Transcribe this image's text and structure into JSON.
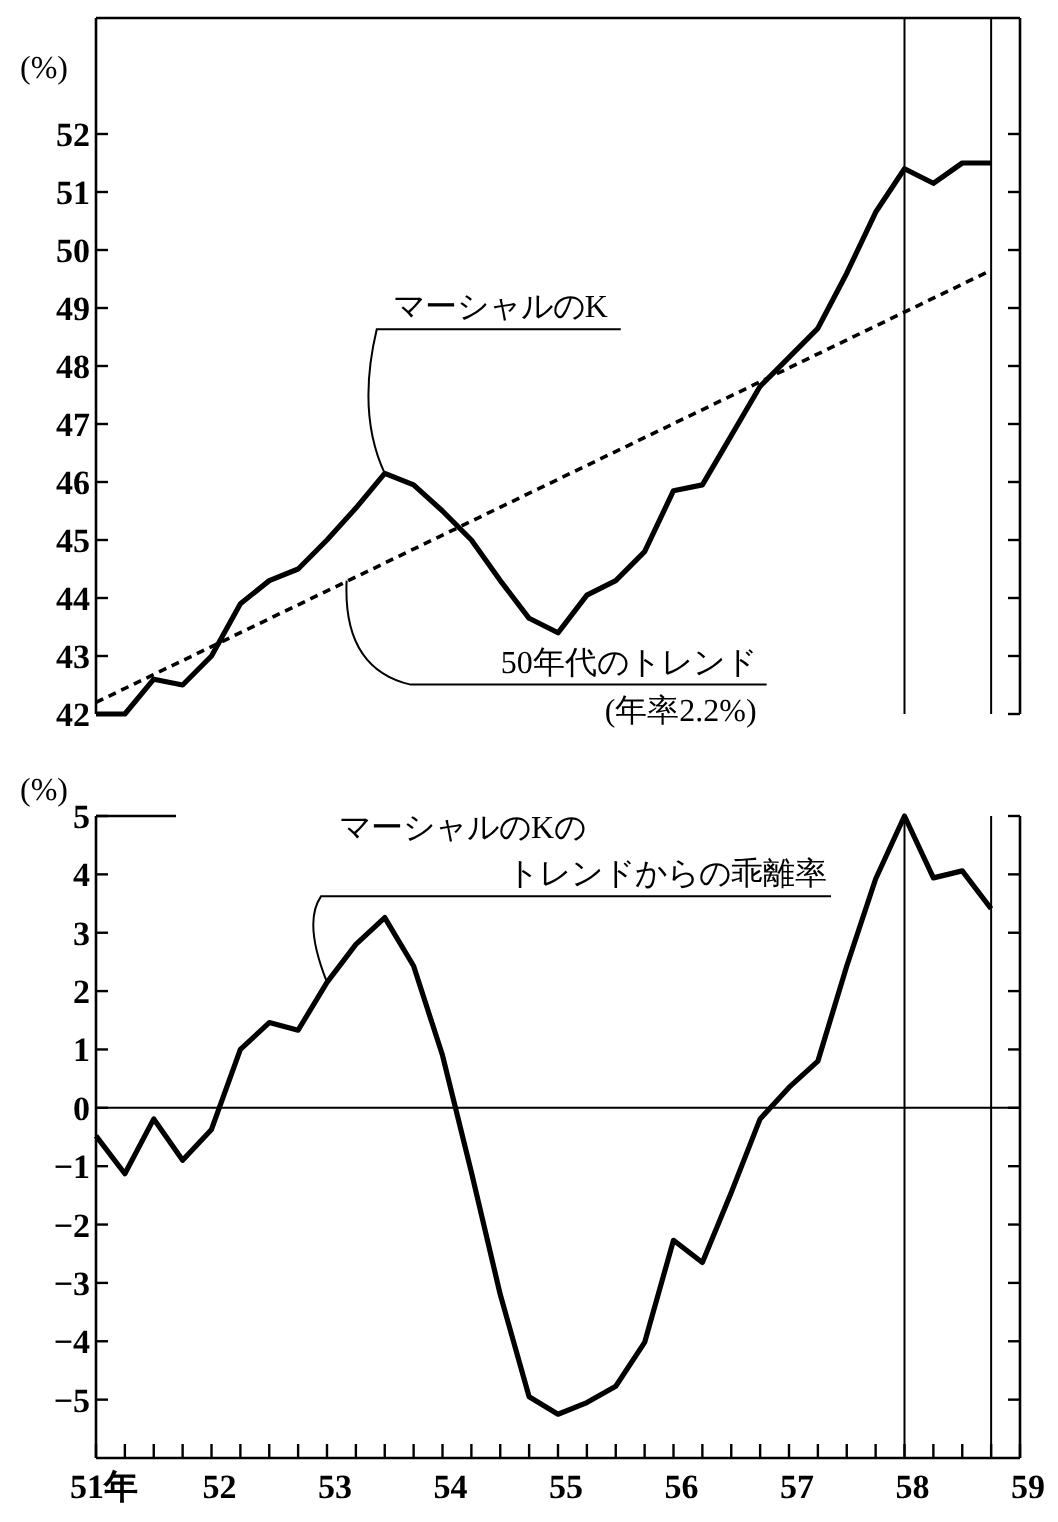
{
  "chart_data": [
    {
      "type": "line",
      "ylabel": "(%)",
      "xlim": [
        51,
        59
      ],
      "ylim": [
        42,
        54
      ],
      "yticks": [
        42,
        43,
        44,
        45,
        46,
        47,
        48,
        49,
        50,
        51,
        52
      ],
      "tick_labels": "y",
      "series": [
        {
          "color": "#000000",
          "line_style": "solid",
          "x": [
            51,
            51.25,
            51.5,
            51.75,
            52,
            52.25,
            52.5,
            52.75,
            53,
            53.25,
            53.5,
            53.75,
            54,
            54.25,
            54.5,
            54.75,
            55,
            55.25,
            55.5,
            55.75,
            56,
            56.25,
            56.5,
            56.75,
            57,
            57.25,
            57.5,
            57.75,
            58,
            58.25,
            58.5,
            58.75
          ],
          "values": [
            42.0,
            42.0,
            42.6,
            42.5,
            43.0,
            43.9,
            44.3,
            44.5,
            45.0,
            45.55,
            46.15,
            45.95,
            45.5,
            45.0,
            44.3,
            43.65,
            43.4,
            44.05,
            44.3,
            44.8,
            45.85,
            45.95,
            46.8,
            47.65,
            48.15,
            48.65,
            49.6,
            50.65,
            51.4,
            51.15,
            51.5,
            51.5
          ]
        },
        {
          "color": "#000000",
          "line_style": "dashed",
          "x": [
            51,
            58.75
          ],
          "values": [
            42.2,
            49.65
          ]
        }
      ],
      "ref_lines": [
        {
          "axis": "x",
          "value": 58
        },
        {
          "axis": "x",
          "value": 58.75
        }
      ],
      "annotations": [
        {
          "text": "マーシャルのK",
          "x": 53.5,
          "y": 46.15
        },
        {
          "text": "50年代のトレンド",
          "x": 53.17,
          "y": 44.3
        },
        "(年率2.2%)"
      ]
    },
    {
      "type": "line",
      "ylabel": "(%)",
      "xlim": [
        51,
        59
      ],
      "ylim": [
        -6,
        5
      ],
      "yticks": [
        {
          "value": 5,
          "label": "5"
        },
        {
          "value": 4,
          "label": "4"
        },
        {
          "value": 3,
          "label": "3"
        },
        {
          "value": 2,
          "label": "2"
        },
        {
          "value": 1,
          "label": "1"
        },
        {
          "value": 0,
          "label": "0"
        },
        {
          "value": -1,
          "label": "−1"
        },
        {
          "value": -2,
          "label": "−2"
        },
        {
          "value": -3,
          "label": "−3"
        },
        {
          "value": -4,
          "label": "−4"
        },
        {
          "value": -5,
          "label": "−5"
        }
      ],
      "xticks": [
        {
          "value": 51,
          "label": "51年"
        },
        {
          "value": 51.25,
          "label": null
        },
        {
          "value": 51.5,
          "label": null
        },
        {
          "value": 51.75,
          "label": null
        },
        {
          "value": 52,
          "label": "52"
        },
        {
          "value": 52.25,
          "label": null
        },
        {
          "value": 52.5,
          "label": null
        },
        {
          "value": 52.75,
          "label": null
        },
        {
          "value": 53,
          "label": "53"
        },
        {
          "value": 53.25,
          "label": null
        },
        {
          "value": 53.5,
          "label": null
        },
        {
          "value": 53.75,
          "label": null
        },
        {
          "value": 54,
          "label": "54"
        },
        {
          "value": 54.25,
          "label": null
        },
        {
          "value": 54.5,
          "label": null
        },
        {
          "value": 54.75,
          "label": null
        },
        {
          "value": 55,
          "label": "55"
        },
        {
          "value": 55.25,
          "label": null
        },
        {
          "value": 55.5,
          "label": null
        },
        {
          "value": 55.75,
          "label": null
        },
        {
          "value": 56,
          "label": "56"
        },
        {
          "value": 56.25,
          "label": null
        },
        {
          "value": 56.5,
          "label": null
        },
        {
          "value": 56.75,
          "label": null
        },
        {
          "value": 57,
          "label": "57"
        },
        {
          "value": 57.25,
          "label": null
        },
        {
          "value": 57.5,
          "label": null
        },
        {
          "value": 57.75,
          "label": null
        },
        {
          "value": 58,
          "label": "58"
        },
        {
          "value": 58.25,
          "label": null
        },
        {
          "value": 58.5,
          "label": null
        },
        {
          "value": 58.75,
          "label": null
        },
        {
          "value": 59,
          "label": "59"
        }
      ],
      "series": [
        {
          "color": "#000000",
          "line_style": "solid",
          "x": [
            51,
            51.25,
            51.5,
            51.75,
            52,
            52.25,
            52.5,
            52.75,
            53,
            53.25,
            53.5,
            53.75,
            54,
            54.25,
            54.5,
            54.75,
            55,
            55.25,
            55.5,
            55.75,
            56,
            56.25,
            56.5,
            56.75,
            57,
            57.25,
            57.5,
            57.75,
            58,
            58.25,
            58.5,
            58.75
          ],
          "values": [
            -0.48,
            -1.13,
            -0.19,
            -0.9,
            -0.37,
            1.0,
            1.46,
            1.33,
            2.15,
            2.8,
            3.26,
            2.43,
            0.9,
            -1.1,
            -3.2,
            -4.95,
            -5.25,
            -5.05,
            -4.77,
            -4.02,
            -2.27,
            -2.65,
            -1.45,
            -0.19,
            0.35,
            0.8,
            2.43,
            3.92,
            5.0,
            3.94,
            4.06,
            3.41
          ]
        }
      ],
      "ref_lines": [
        {
          "axis": "y",
          "value": 0
        },
        {
          "axis": "x",
          "value": 58
        },
        {
          "axis": "x",
          "value": 58.75
        }
      ],
      "annotations": [
        "マーシャルのKの",
        {
          "text": "トレンドからの乖離率",
          "x": 53,
          "y": 2.15
        }
      ]
    }
  ]
}
